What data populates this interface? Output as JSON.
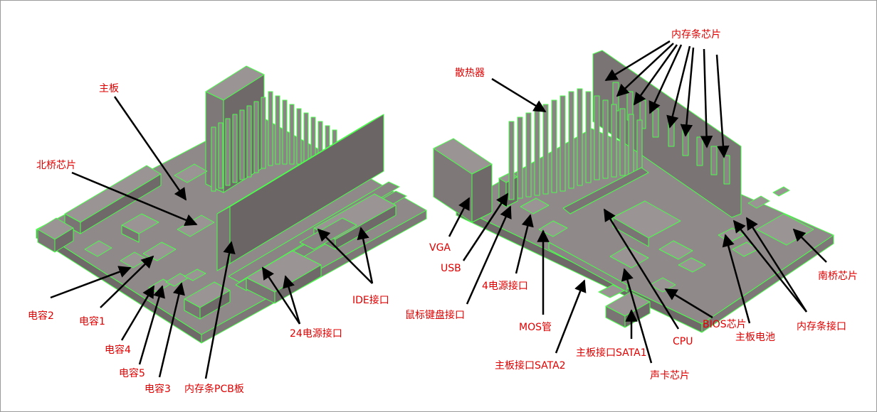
{
  "labels": {
    "zhuban": "主板",
    "beiqiao": "北桥芯片",
    "dianrong2": "电容2",
    "dianrong1": "电容1",
    "dianrong4": "电容4",
    "dianrong5": "电容5",
    "dianrong3": "电容3",
    "pcb": "内存条PCB板",
    "power24": "24电源接口",
    "ide": "IDE接口",
    "sanreqi": "散热器",
    "memchip": "内存条芯片",
    "vga": "VGA",
    "usb": "USB",
    "kbm": "鼠标键盘接口",
    "power4": "4电源接口",
    "mos": "MOS管",
    "sata2": "主板接口SATA2",
    "sata1": "主板接口SATA1",
    "sound": "声卡芯片",
    "cpu": "CPU",
    "bios": "BIOS芯片",
    "battery": "主板电池",
    "memslot": "内存条接口",
    "nanqiao": "南桥芯片"
  },
  "colors": {
    "board": "#8a8584",
    "board_top": "#9a9594",
    "component": "#8f8a89",
    "outline": "#4cff4c",
    "label": "#e00000",
    "leader": "#000000"
  }
}
